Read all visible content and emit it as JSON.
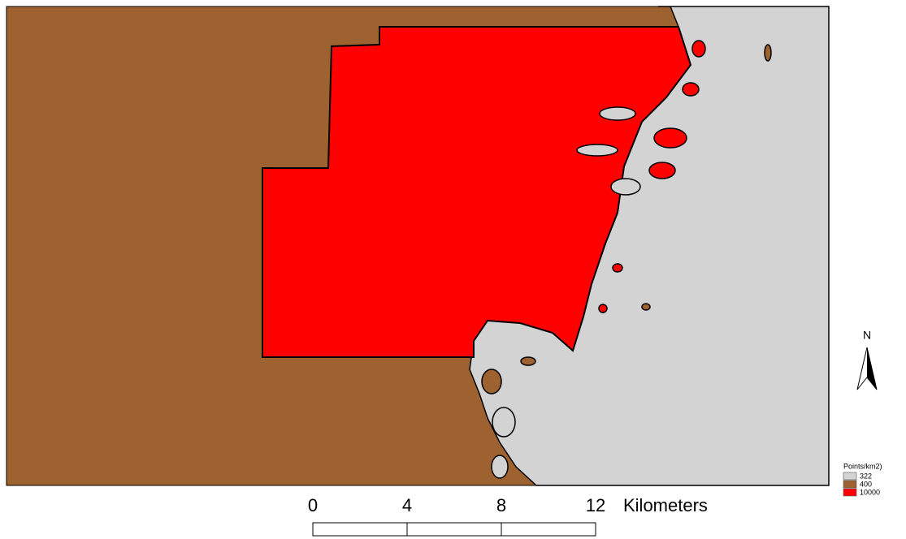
{
  "north_arrow": {
    "label": "N"
  },
  "legend": {
    "title": "Points/km2)",
    "items": [
      {
        "label": "322",
        "color": "#d3d3d3"
      },
      {
        "label": "400",
        "color": "#9e6230"
      },
      {
        "label": "10000",
        "color": "#ff0000"
      }
    ]
  },
  "scale_bar": {
    "ticks": [
      0,
      4,
      8,
      12
    ],
    "unit": "Kilometers"
  }
}
